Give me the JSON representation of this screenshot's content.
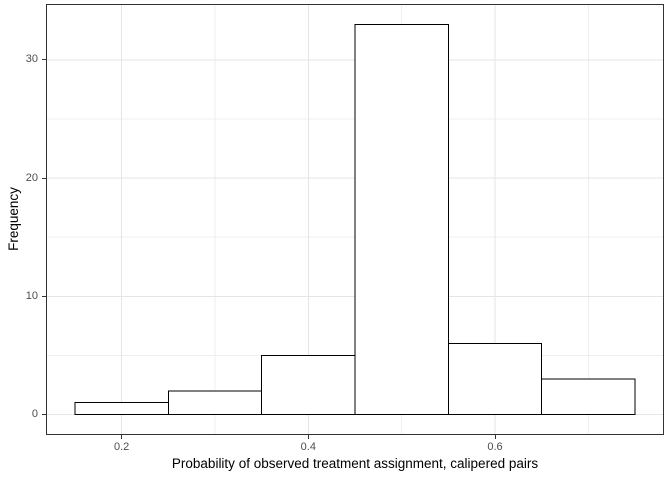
{
  "figure": {
    "background": "#ffffff"
  },
  "chart_data": {
    "type": "bar",
    "subtype": "histogram",
    "title": "",
    "xlabel": "Probability of observed treatment assignment, calipered pairs",
    "ylabel": "Frequency",
    "bins": {
      "edges": [
        0.15,
        0.25,
        0.35,
        0.45,
        0.55,
        0.65,
        0.75
      ],
      "counts": [
        1,
        2,
        5,
        33,
        6,
        3
      ]
    },
    "xlim": [
      0.12,
      0.78
    ],
    "ylim": [
      -1.65,
      34.65
    ],
    "x_ticks": [
      {
        "value": 0.2,
        "label": "0.2"
      },
      {
        "value": 0.4,
        "label": "0.4"
      },
      {
        "value": 0.6,
        "label": "0.6"
      }
    ],
    "y_ticks": [
      {
        "value": 0,
        "label": "0"
      },
      {
        "value": 10,
        "label": "10"
      },
      {
        "value": 20,
        "label": "20"
      },
      {
        "value": 30,
        "label": "30"
      }
    ],
    "x_minor_ticks": [
      0.3,
      0.5,
      0.7
    ],
    "y_minor_ticks": [
      5,
      15,
      25
    ],
    "grid": "major+minor",
    "legend": "none",
    "colors": {
      "bar_fill": "#ffffff",
      "bar_stroke": "#000000",
      "grid_major": "#e5e5e5",
      "grid_minor": "#efefef",
      "panel_border": "#333333",
      "tick_mark": "#333333",
      "tick_label": "#4d4d4d",
      "axis_title": "#000000",
      "background": "#ffffff"
    }
  }
}
